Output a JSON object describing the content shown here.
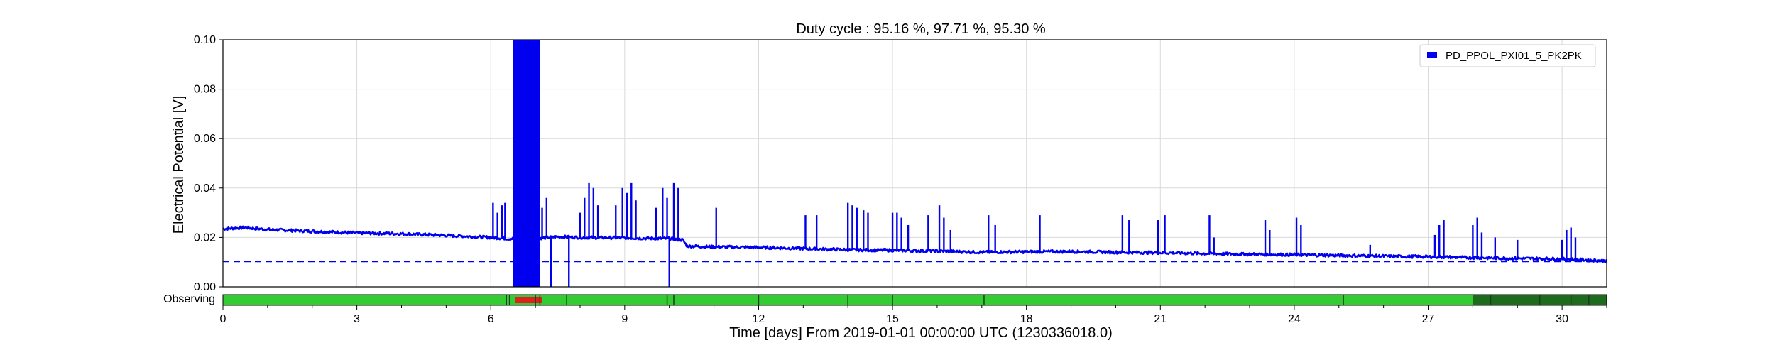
{
  "chart_data": {
    "type": "line",
    "title": "Duty cycle : 95.16 %, 97.71 %, 95.30 %",
    "xlabel": "Time [days] From 2019-01-01 00:00:00 UTC (1230336018.0)",
    "ylabel": "Electrical Potential [V]",
    "xlim": [
      0,
      31
    ],
    "ylim": [
      0,
      0.1
    ],
    "grid": true,
    "legend_position": "top-right",
    "x_ticks": [
      0,
      3,
      6,
      9,
      12,
      15,
      18,
      21,
      24,
      27,
      30
    ],
    "x_tick_labels": [
      "0",
      "3",
      "6",
      "9",
      "12",
      "15",
      "18",
      "21",
      "24",
      "27",
      "30"
    ],
    "y_ticks": [
      0.0,
      0.02,
      0.04,
      0.06,
      0.08,
      0.1
    ],
    "y_tick_labels": [
      "0.00",
      "0.02",
      "0.04",
      "0.06",
      "0.08",
      "0.10"
    ],
    "series": [
      {
        "name": "PD_PPOL_PXI01_5_PK2PK",
        "color": "#0000ee",
        "baseline": [
          [
            0,
            0.0235
          ],
          [
            0.5,
            0.024
          ],
          [
            1,
            0.0232
          ],
          [
            2,
            0.0225
          ],
          [
            3,
            0.0218
          ],
          [
            4,
            0.0215
          ],
          [
            5,
            0.0208
          ],
          [
            6,
            0.02
          ],
          [
            6.4,
            0.0195
          ],
          [
            7.2,
            0.0198
          ],
          [
            7.5,
            0.0203
          ],
          [
            8,
            0.02
          ],
          [
            9,
            0.0198
          ],
          [
            10,
            0.0195
          ],
          [
            10.3,
            0.019
          ],
          [
            10.4,
            0.0165
          ],
          [
            11,
            0.0162
          ],
          [
            12,
            0.016
          ],
          [
            13,
            0.0155
          ],
          [
            14,
            0.015
          ],
          [
            15,
            0.0148
          ],
          [
            16,
            0.0145
          ],
          [
            17,
            0.014
          ],
          [
            18,
            0.0142
          ],
          [
            19,
            0.0143
          ],
          [
            20,
            0.014
          ],
          [
            21,
            0.0138
          ],
          [
            22,
            0.0135
          ],
          [
            23,
            0.0132
          ],
          [
            24,
            0.013
          ],
          [
            25,
            0.0127
          ],
          [
            26,
            0.0124
          ],
          [
            27,
            0.0122
          ],
          [
            28,
            0.0118
          ],
          [
            29,
            0.0115
          ],
          [
            30,
            0.0113
          ],
          [
            31,
            0.0105
          ]
        ],
        "spikes": [
          [
            6.05,
            0.034
          ],
          [
            6.15,
            0.03
          ],
          [
            6.25,
            0.033
          ],
          [
            6.32,
            0.034
          ],
          [
            7.15,
            0.032
          ],
          [
            7.25,
            0.036
          ],
          [
            8.0,
            0.03
          ],
          [
            8.1,
            0.036
          ],
          [
            8.2,
            0.042
          ],
          [
            8.3,
            0.04
          ],
          [
            8.4,
            0.033
          ],
          [
            8.8,
            0.033
          ],
          [
            8.95,
            0.04
          ],
          [
            9.05,
            0.038
          ],
          [
            9.15,
            0.042
          ],
          [
            9.25,
            0.035
          ],
          [
            9.7,
            0.032
          ],
          [
            9.85,
            0.04
          ],
          [
            9.95,
            0.036
          ],
          [
            10.1,
            0.042
          ],
          [
            10.2,
            0.04
          ],
          [
            11.05,
            0.032
          ],
          [
            13.05,
            0.029
          ],
          [
            13.3,
            0.029
          ],
          [
            14.0,
            0.034
          ],
          [
            14.1,
            0.033
          ],
          [
            14.2,
            0.032
          ],
          [
            14.35,
            0.031
          ],
          [
            14.45,
            0.03
          ],
          [
            15.0,
            0.03
          ],
          [
            15.1,
            0.03
          ],
          [
            15.2,
            0.028
          ],
          [
            15.35,
            0.025
          ],
          [
            15.8,
            0.029
          ],
          [
            16.05,
            0.033
          ],
          [
            16.15,
            0.028
          ],
          [
            16.3,
            0.023
          ],
          [
            17.15,
            0.029
          ],
          [
            17.3,
            0.025
          ],
          [
            18.3,
            0.029
          ],
          [
            20.15,
            0.029
          ],
          [
            20.3,
            0.027
          ],
          [
            20.95,
            0.027
          ],
          [
            21.1,
            0.029
          ],
          [
            22.1,
            0.029
          ],
          [
            22.2,
            0.02
          ],
          [
            23.35,
            0.027
          ],
          [
            23.45,
            0.023
          ],
          [
            24.05,
            0.028
          ],
          [
            24.15,
            0.025
          ],
          [
            25.7,
            0.017
          ],
          [
            27.15,
            0.021
          ],
          [
            27.25,
            0.025
          ],
          [
            27.35,
            0.027
          ],
          [
            28.0,
            0.025
          ],
          [
            28.1,
            0.028
          ],
          [
            28.2,
            0.022
          ],
          [
            28.5,
            0.02
          ],
          [
            29.0,
            0.019
          ],
          [
            30.0,
            0.019
          ],
          [
            30.1,
            0.023
          ],
          [
            30.2,
            0.024
          ],
          [
            30.3,
            0.02
          ]
        ],
        "dips": [
          7.35,
          7.75,
          10.0
        ],
        "saturated_band": [
          6.5,
          7.1
        ],
        "dashed_level": 0.0103
      }
    ],
    "segment_bar": {
      "label": "Observing",
      "colors": {
        "good": "#33cc33",
        "bad": "#e02020",
        "dark": "#1e6b1e"
      },
      "bad_segments": [
        [
          6.55,
          7.15
        ]
      ],
      "dark_segments": [
        [
          28.0,
          31.0
        ]
      ],
      "ticks": [
        6.35,
        6.42,
        7.0,
        7.1,
        7.7,
        9.95,
        10.1,
        12.0,
        14.0,
        15.0,
        17.05,
        25.1,
        28.4,
        29.5,
        30.2,
        30.6
      ]
    }
  }
}
